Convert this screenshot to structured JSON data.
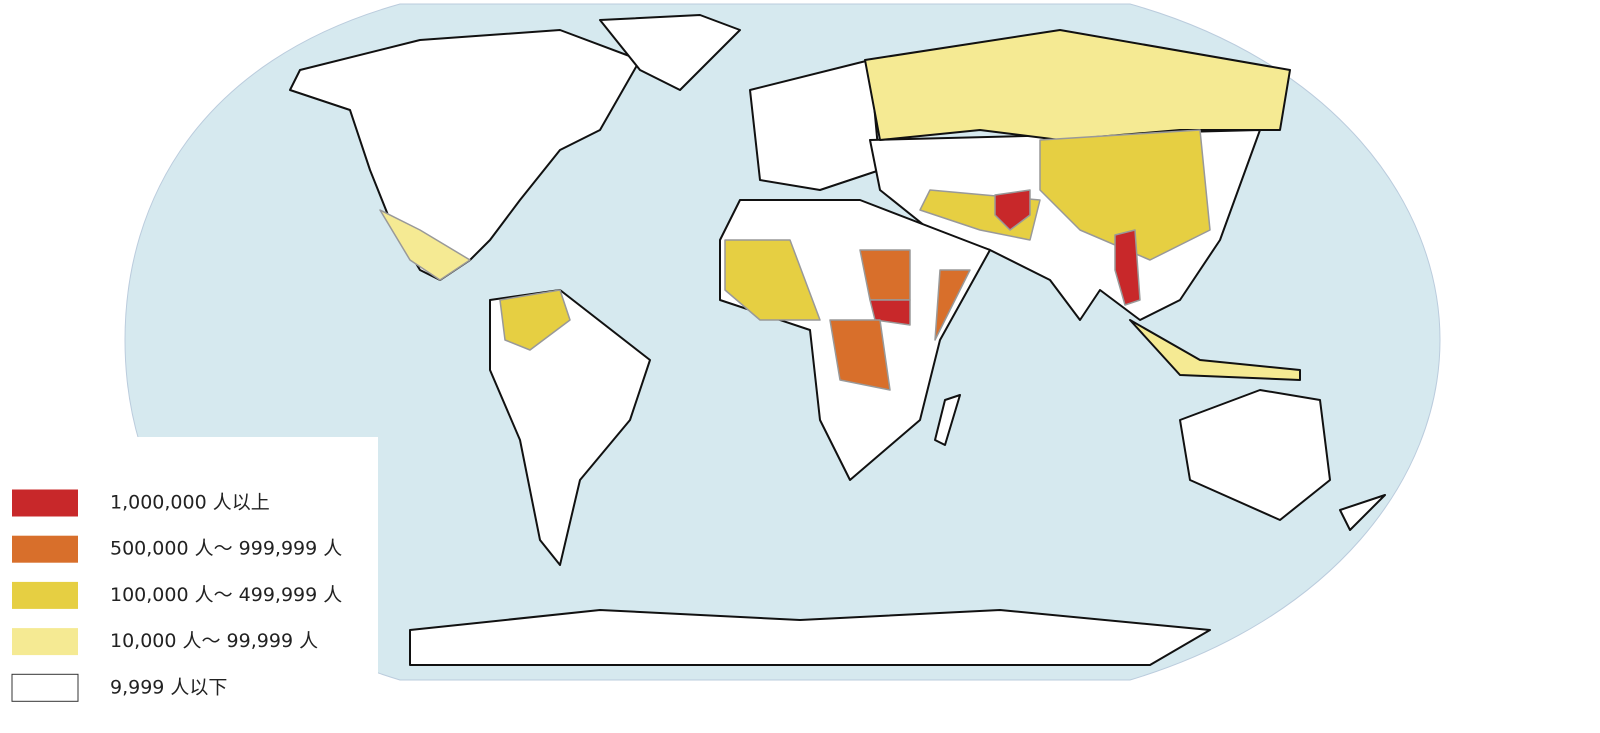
{
  "legend": {
    "items": [
      {
        "label": "1,000,000 人以上",
        "color": "#c8282a"
      },
      {
        "label": "500,000 人～ 999,999 人",
        "color": "#d86f2b"
      },
      {
        "label": "100,000 人～ 499,999 人",
        "color": "#e6cf42"
      },
      {
        "label": "10,000 人～ 99,999 人",
        "color": "#f5ea93"
      },
      {
        "label": "9,999 人以下",
        "color": "#ffffff"
      }
    ]
  }
}
